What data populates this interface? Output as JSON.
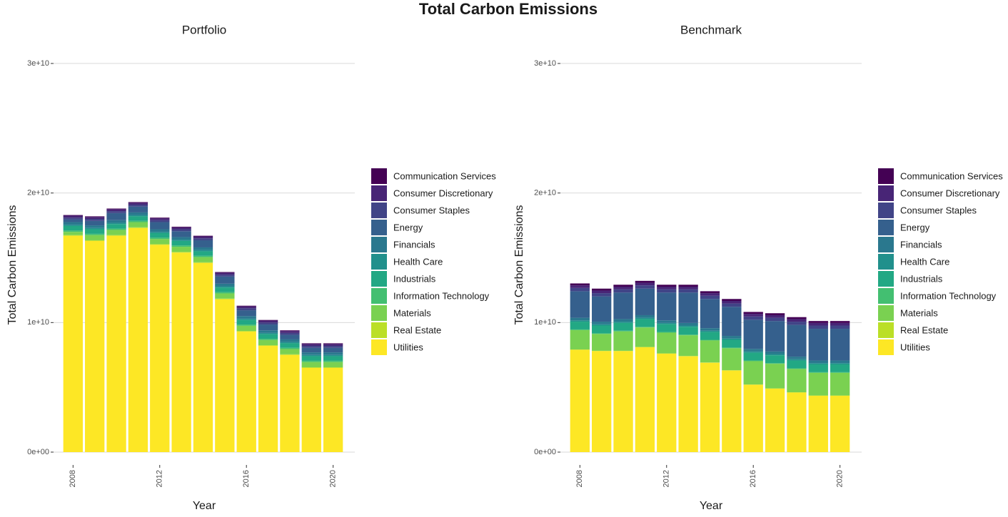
{
  "title": "Total Carbon Emissions",
  "chart_data": [
    {
      "type": "bar",
      "stacked": true,
      "title": "Portfolio",
      "x_label": "Year",
      "y_label": "Total Carbon Emissions",
      "x": [
        2008,
        2009,
        2010,
        2011,
        2012,
        2013,
        2014,
        2015,
        2016,
        2017,
        2018,
        2019,
        2020
      ],
      "xlim": [
        2007.1,
        2021
      ],
      "xticks": [
        2008,
        2012,
        2016,
        2020
      ],
      "ylim": [
        0,
        30000000000.0
      ],
      "yticks": [
        {
          "value": 0,
          "label": "0e+00"
        },
        {
          "value": 10000000000.0,
          "label": "1e+10"
        },
        {
          "value": 20000000000.0,
          "label": "2e+10"
        },
        {
          "value": 30000000000.0,
          "label": "3e+10"
        }
      ],
      "grid": true,
      "legend": "right",
      "series": [
        {
          "name": "Communication Services",
          "color": "#440154",
          "values": [
            50000000.0,
            50000000.0,
            50000000.0,
            50000000.0,
            50000000.0,
            50000000.0,
            50000000.0,
            50000000.0,
            50000000.0,
            50000000.0,
            50000000.0,
            50000000.0,
            50000000.0
          ]
        },
        {
          "name": "Consumer Discretionary",
          "color": "#482576",
          "values": [
            150000000.0,
            150000000.0,
            150000000.0,
            150000000.0,
            150000000.0,
            150000000.0,
            150000000.0,
            150000000.0,
            150000000.0,
            150000000.0,
            150000000.0,
            150000000.0,
            150000000.0
          ]
        },
        {
          "name": "Consumer Staples",
          "color": "#414487",
          "values": [
            150000000.0,
            150000000.0,
            150000000.0,
            150000000.0,
            150000000.0,
            150000000.0,
            150000000.0,
            150000000.0,
            150000000.0,
            150000000.0,
            150000000.0,
            150000000.0,
            150000000.0
          ]
        },
        {
          "name": "Energy",
          "color": "#35608D",
          "values": [
            200000000.0,
            350000000.0,
            550000000.0,
            450000000.0,
            550000000.0,
            450000000.0,
            550000000.0,
            550000000.0,
            450000000.0,
            450000000.0,
            350000000.0,
            350000000.0,
            350000000.0
          ]
        },
        {
          "name": "Financials",
          "color": "#2A788E",
          "values": [
            200000000.0,
            200000000.0,
            200000000.0,
            200000000.0,
            200000000.0,
            200000000.0,
            200000000.0,
            200000000.0,
            200000000.0,
            200000000.0,
            200000000.0,
            200000000.0,
            200000000.0
          ]
        },
        {
          "name": "Health Care",
          "color": "#21908C",
          "values": [
            100000000.0,
            100000000.0,
            100000000.0,
            100000000.0,
            100000000.0,
            100000000.0,
            100000000.0,
            100000000.0,
            100000000.0,
            100000000.0,
            100000000.0,
            100000000.0,
            100000000.0
          ]
        },
        {
          "name": "Industrials",
          "color": "#22A884",
          "values": [
            350000000.0,
            350000000.0,
            350000000.0,
            350000000.0,
            350000000.0,
            350000000.0,
            350000000.0,
            350000000.0,
            350000000.0,
            350000000.0,
            350000000.0,
            350000000.0,
            350000000.0
          ]
        },
        {
          "name": "Information Technology",
          "color": "#43BF71",
          "values": [
            100000000.0,
            100000000.0,
            100000000.0,
            100000000.0,
            100000000.0,
            100000000.0,
            100000000.0,
            100000000.0,
            100000000.0,
            100000000.0,
            100000000.0,
            100000000.0,
            100000000.0
          ]
        },
        {
          "name": "Materials",
          "color": "#7AD151",
          "values": [
            250000000.0,
            400000000.0,
            400000000.0,
            400000000.0,
            400000000.0,
            400000000.0,
            400000000.0,
            400000000.0,
            400000000.0,
            400000000.0,
            400000000.0,
            400000000.0,
            400000000.0
          ]
        },
        {
          "name": "Real Estate",
          "color": "#BBDF27",
          "values": [
            50000000.0,
            50000000.0,
            50000000.0,
            50000000.0,
            50000000.0,
            50000000.0,
            50000000.0,
            50000000.0,
            50000000.0,
            50000000.0,
            50000000.0,
            50000000.0,
            50000000.0
          ]
        },
        {
          "name": "Utilities",
          "color": "#FDE725",
          "values": [
            16700000000.0,
            16300000000.0,
            16700000000.0,
            17300000000.0,
            16000000000.0,
            15400000000.0,
            14600000000.0,
            11800000000.0,
            9300000000.0,
            8200000000.0,
            7500000000.0,
            6500000000.0,
            6500000000.0
          ]
        }
      ]
    },
    {
      "type": "bar",
      "stacked": true,
      "title": "Benchmark",
      "x_label": "Year",
      "y_label": "Total Carbon Emissions",
      "x": [
        2008,
        2009,
        2010,
        2011,
        2012,
        2013,
        2014,
        2015,
        2016,
        2017,
        2018,
        2019,
        2020
      ],
      "xlim": [
        2007.1,
        2021
      ],
      "xticks": [
        2008,
        2012,
        2016,
        2020
      ],
      "ylim": [
        0,
        30000000000.0
      ],
      "yticks": [
        {
          "value": 0,
          "label": "0e+00"
        },
        {
          "value": 10000000000.0,
          "label": "1e+10"
        },
        {
          "value": 20000000000.0,
          "label": "2e+10"
        },
        {
          "value": 30000000000.0,
          "label": "3e+10"
        }
      ],
      "grid": true,
      "legend": "right",
      "series": [
        {
          "name": "Communication Services",
          "color": "#440154",
          "values": [
            150000000.0,
            150000000.0,
            150000000.0,
            150000000.0,
            150000000.0,
            150000000.0,
            150000000.0,
            150000000.0,
            150000000.0,
            150000000.0,
            150000000.0,
            150000000.0,
            150000000.0
          ]
        },
        {
          "name": "Consumer Discretionary",
          "color": "#482576",
          "values": [
            200000000.0,
            200000000.0,
            200000000.0,
            200000000.0,
            200000000.0,
            200000000.0,
            200000000.0,
            200000000.0,
            200000000.0,
            200000000.0,
            200000000.0,
            200000000.0,
            200000000.0
          ]
        },
        {
          "name": "Consumer Staples",
          "color": "#414487",
          "values": [
            250000000.0,
            250000000.0,
            250000000.0,
            250000000.0,
            250000000.0,
            250000000.0,
            250000000.0,
            250000000.0,
            250000000.0,
            250000000.0,
            250000000.0,
            250000000.0,
            250000000.0
          ]
        },
        {
          "name": "Energy",
          "color": "#35608D",
          "values": [
            2050000000.0,
            1950000000.0,
            2050000000.0,
            2050000000.0,
            2150000000.0,
            2350000000.0,
            2250000000.0,
            2250000000.0,
            2250000000.0,
            2350000000.0,
            2450000000.0,
            2450000000.0,
            2450000000.0
          ]
        },
        {
          "name": "Financials",
          "color": "#2A788E",
          "values": [
            200000000.0,
            200000000.0,
            200000000.0,
            200000000.0,
            200000000.0,
            200000000.0,
            200000000.0,
            200000000.0,
            200000000.0,
            200000000.0,
            200000000.0,
            200000000.0,
            200000000.0
          ]
        },
        {
          "name": "Health Care",
          "color": "#21908C",
          "values": [
            100000000.0,
            100000000.0,
            100000000.0,
            100000000.0,
            100000000.0,
            100000000.0,
            100000000.0,
            100000000.0,
            100000000.0,
            100000000.0,
            100000000.0,
            100000000.0,
            100000000.0
          ]
        },
        {
          "name": "Industrials",
          "color": "#22A884",
          "values": [
            600000000.0,
            600000000.0,
            600000000.0,
            600000000.0,
            600000000.0,
            600000000.0,
            600000000.0,
            600000000.0,
            600000000.0,
            600000000.0,
            600000000.0,
            600000000.0,
            600000000.0
          ]
        },
        {
          "name": "Information Technology",
          "color": "#43BF71",
          "values": [
            50000000.0,
            50000000.0,
            50000000.0,
            50000000.0,
            50000000.0,
            50000000.0,
            50000000.0,
            50000000.0,
            50000000.0,
            50000000.0,
            50000000.0,
            50000000.0,
            50000000.0
          ]
        },
        {
          "name": "Materials",
          "color": "#7AD151",
          "values": [
            1500000000.0,
            1300000000.0,
            1500000000.0,
            1500000000.0,
            1600000000.0,
            1600000000.0,
            1700000000.0,
            1700000000.0,
            1800000000.0,
            1900000000.0,
            1800000000.0,
            1750000000.0,
            1750000000.0
          ]
        },
        {
          "name": "Real Estate",
          "color": "#BBDF27",
          "values": [
            20000000.0,
            20000000.0,
            20000000.0,
            20000000.0,
            20000000.0,
            20000000.0,
            20000000.0,
            20000000.0,
            20000000.0,
            20000000.0,
            20000000.0,
            20000000.0,
            20000000.0
          ]
        },
        {
          "name": "Utilities",
          "color": "#FDE725",
          "values": [
            7900000000.0,
            7800000000.0,
            7800000000.0,
            8100000000.0,
            7600000000.0,
            7400000000.0,
            6900000000.0,
            6300000000.0,
            5200000000.0,
            4900000000.0,
            4600000000.0,
            4350000000.0,
            4350000000.0
          ]
        }
      ]
    }
  ]
}
